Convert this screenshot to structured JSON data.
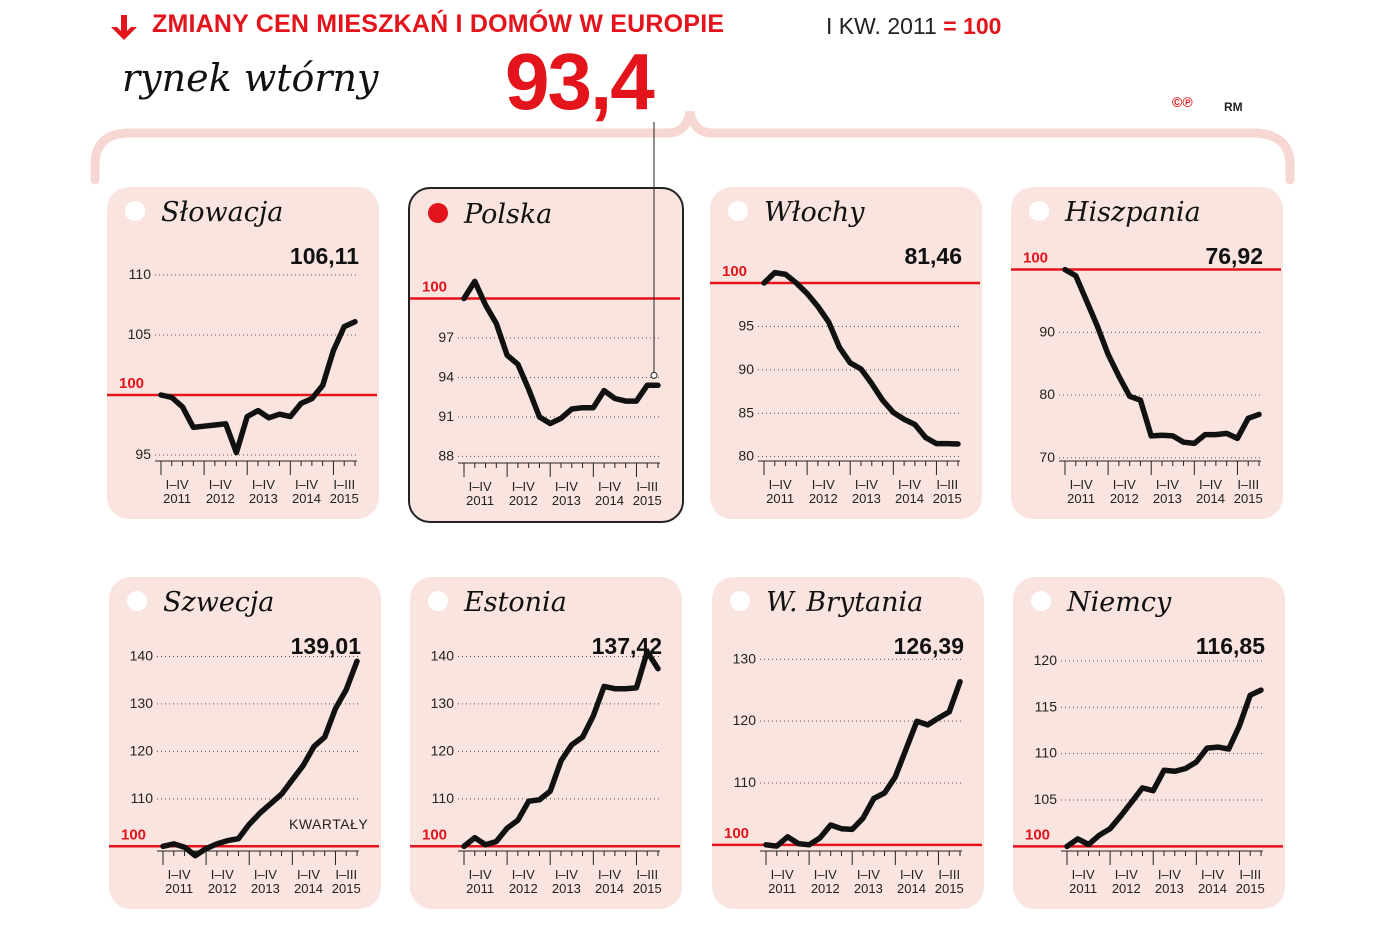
{
  "header": {
    "title": "ZMIANY CEN MIESZKAŃ I DOMÓW W EUROPIE",
    "base_note_prefix": "I KW. 2011",
    "base_note_eq": "= 100",
    "subtitle": "rynek wtórny",
    "highlight_value": "93,4",
    "copyright": "©℗",
    "author": "RM",
    "kwartaly": "KWARTAŁY"
  },
  "colors": {
    "accent": "#e3141b",
    "panel": "#f9e4e0",
    "line": "#111111"
  },
  "icons": {
    "title_arrow": "arrow-down-icon",
    "marker": "circle-dot-icon"
  },
  "x_tick_labels": [
    {
      "q": "I–IV",
      "y": "2011"
    },
    {
      "q": "I–IV",
      "y": "2012"
    },
    {
      "q": "I–IV",
      "y": "2013"
    },
    {
      "q": "I–IV",
      "y": "2014"
    },
    {
      "q": "I–III",
      "y": "2015"
    }
  ],
  "chart_data": [
    {
      "type": "line",
      "country": "Słowacja",
      "selected": false,
      "end_label": "106,11",
      "baseline": 100,
      "ylim": [
        94.5,
        111.5
      ],
      "yticks": [
        95,
        105,
        110
      ],
      "x": [
        "2011 Q1",
        "2011 Q2",
        "2011 Q3",
        "2011 Q4",
        "2012 Q1",
        "2012 Q2",
        "2012 Q3",
        "2012 Q4",
        "2013 Q1",
        "2013 Q2",
        "2013 Q3",
        "2013 Q4",
        "2014 Q1",
        "2014 Q2",
        "2014 Q3",
        "2014 Q4",
        "2015 Q1",
        "2015 Q2",
        "2015 Q3"
      ],
      "values": [
        100,
        99.8,
        99,
        97.3,
        97.4,
        97.5,
        97.6,
        95.2,
        98.2,
        98.7,
        98.1,
        98.4,
        98.2,
        99.3,
        99.7,
        100.8,
        103.7,
        105.7,
        106.11
      ]
    },
    {
      "type": "line",
      "country": "Polska",
      "selected": true,
      "end_label": "",
      "baseline": 100,
      "ylim": [
        87.5,
        103
      ],
      "yticks": [
        88,
        91,
        94,
        97
      ],
      "x": [
        "2011 Q1",
        "2011 Q2",
        "2011 Q3",
        "2011 Q4",
        "2012 Q1",
        "2012 Q2",
        "2012 Q3",
        "2012 Q4",
        "2013 Q1",
        "2013 Q2",
        "2013 Q3",
        "2013 Q4",
        "2014 Q1",
        "2014 Q2",
        "2014 Q3",
        "2014 Q4",
        "2015 Q1",
        "2015 Q2",
        "2015 Q3"
      ],
      "values": [
        100,
        101.3,
        99.5,
        98.1,
        95.7,
        95.0,
        93.1,
        91.0,
        90.5,
        90.9,
        91.6,
        91.7,
        91.7,
        93.0,
        92.4,
        92.2,
        92.2,
        93.4,
        93.4
      ]
    },
    {
      "type": "line",
      "country": "Włochy",
      "selected": false,
      "end_label": "81,46",
      "baseline": 100,
      "ylim": [
        79.5,
        103
      ],
      "yticks": [
        80,
        85,
        90,
        95
      ],
      "x": [
        "2011 Q1",
        "2011 Q2",
        "2011 Q3",
        "2011 Q4",
        "2012 Q1",
        "2012 Q2",
        "2012 Q3",
        "2012 Q4",
        "2013 Q1",
        "2013 Q2",
        "2013 Q3",
        "2013 Q4",
        "2014 Q1",
        "2014 Q2",
        "2014 Q3",
        "2014 Q4",
        "2015 Q1",
        "2015 Q2",
        "2015 Q3"
      ],
      "values": [
        100,
        101.2,
        101,
        100,
        98.8,
        97.3,
        95.5,
        92.6,
        90.8,
        90.1,
        88.4,
        86.5,
        85.1,
        84.3,
        83.7,
        82.2,
        81.5,
        81.5,
        81.46
      ]
    },
    {
      "type": "line",
      "country": "Hiszpania",
      "selected": false,
      "end_label": "76,92",
      "baseline": 100,
      "ylim": [
        69.5,
        102
      ],
      "yticks": [
        70,
        80,
        90
      ],
      "x": [
        "2011 Q1",
        "2011 Q2",
        "2011 Q3",
        "2011 Q4",
        "2012 Q1",
        "2012 Q2",
        "2012 Q3",
        "2012 Q4",
        "2013 Q1",
        "2013 Q2",
        "2013 Q3",
        "2013 Q4",
        "2014 Q1",
        "2014 Q2",
        "2014 Q3",
        "2014 Q4",
        "2015 Q1",
        "2015 Q2",
        "2015 Q3"
      ],
      "values": [
        100,
        99,
        95,
        91,
        86.5,
        83,
        79.8,
        79.2,
        73.5,
        73.6,
        73.5,
        72.5,
        72.3,
        73.7,
        73.7,
        73.9,
        73.1,
        76.3,
        76.92
      ]
    },
    {
      "type": "line",
      "country": "Szwecja",
      "selected": false,
      "end_label": "139,01",
      "baseline": 100,
      "ylim": [
        99,
        142
      ],
      "yticks": [
        110,
        120,
        130,
        140
      ],
      "kwartaly": true,
      "x": [
        "2011 Q1",
        "2011 Q2",
        "2011 Q3",
        "2011 Q4",
        "2012 Q1",
        "2012 Q2",
        "2012 Q3",
        "2012 Q4",
        "2013 Q1",
        "2013 Q2",
        "2013 Q3",
        "2013 Q4",
        "2014 Q1",
        "2014 Q2",
        "2014 Q3",
        "2014 Q4",
        "2015 Q1",
        "2015 Q2",
        "2015 Q3"
      ],
      "values": [
        100,
        100.5,
        99.8,
        98,
        99.5,
        100.5,
        101.2,
        101.6,
        104.6,
        107,
        109,
        111,
        114,
        117,
        121,
        123,
        129,
        133,
        139.01
      ]
    },
    {
      "type": "line",
      "country": "Estonia",
      "selected": false,
      "end_label": "137,42",
      "baseline": 100,
      "ylim": [
        99,
        142
      ],
      "yticks": [
        110,
        120,
        130,
        140
      ],
      "x": [
        "2011 Q1",
        "2011 Q2",
        "2011 Q3",
        "2011 Q4",
        "2012 Q1",
        "2012 Q2",
        "2012 Q3",
        "2012 Q4",
        "2013 Q1",
        "2013 Q2",
        "2013 Q3",
        "2013 Q4",
        "2014 Q1",
        "2014 Q2",
        "2014 Q3",
        "2014 Q4",
        "2015 Q1",
        "2015 Q2",
        "2015 Q3"
      ],
      "values": [
        100,
        101.8,
        100.3,
        101,
        103.8,
        105.5,
        109.5,
        109.8,
        111.6,
        118,
        121.4,
        123,
        127.5,
        133.7,
        133.2,
        133.2,
        133.4,
        141,
        137.42
      ]
    },
    {
      "type": "line",
      "country": "W. Brytania",
      "selected": false,
      "end_label": "126,39",
      "baseline": 100,
      "ylim": [
        99,
        132
      ],
      "yticks": [
        110,
        120,
        130
      ],
      "x": [
        "2011 Q1",
        "2011 Q2",
        "2011 Q3",
        "2011 Q4",
        "2012 Q1",
        "2012 Q2",
        "2012 Q3",
        "2012 Q4",
        "2013 Q1",
        "2013 Q2",
        "2013 Q3",
        "2013 Q4",
        "2014 Q1",
        "2014 Q2",
        "2014 Q3",
        "2014 Q4",
        "2015 Q1",
        "2015 Q2",
        "2015 Q3"
      ],
      "values": [
        100,
        99.8,
        101.3,
        100.2,
        100,
        101.1,
        103.2,
        102.6,
        102.5,
        104.3,
        107.5,
        108.4,
        111,
        115.5,
        120,
        119.4,
        120.5,
        121.5,
        126.39
      ]
    },
    {
      "type": "line",
      "country": "Niemcy",
      "selected": false,
      "end_label": "116,85",
      "baseline": 100,
      "ylim": [
        99.5,
        121.5
      ],
      "yticks": [
        105,
        110,
        115,
        120
      ],
      "x": [
        "2011 Q1",
        "2011 Q2",
        "2011 Q3",
        "2011 Q4",
        "2012 Q1",
        "2012 Q2",
        "2012 Q3",
        "2012 Q4",
        "2013 Q1",
        "2013 Q2",
        "2013 Q3",
        "2013 Q4",
        "2014 Q1",
        "2014 Q2",
        "2014 Q3",
        "2014 Q4",
        "2015 Q1",
        "2015 Q2",
        "2015 Q3"
      ],
      "values": [
        100,
        100.8,
        100.2,
        101.2,
        101.9,
        103.3,
        104.8,
        106.3,
        106,
        108.2,
        108.1,
        108.4,
        109.1,
        110.6,
        110.7,
        110.5,
        113,
        116.3,
        116.85
      ]
    }
  ]
}
